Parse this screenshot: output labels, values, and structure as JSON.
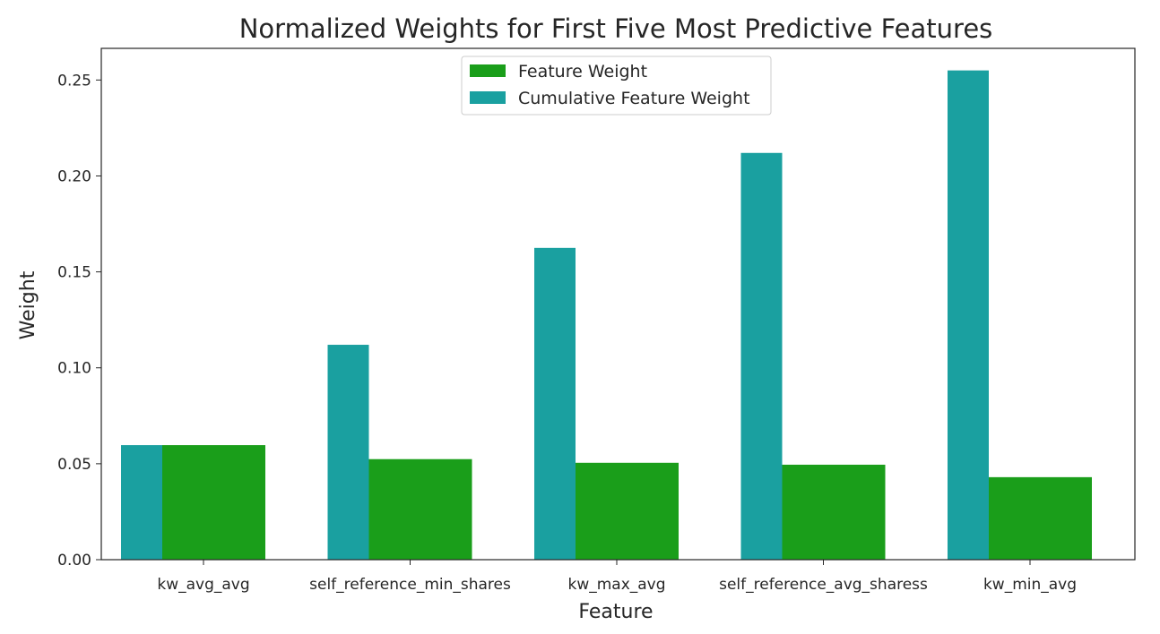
{
  "chart_data": {
    "type": "bar",
    "title": "Normalized Weights for First Five Most Predictive Features",
    "xlabel": "Feature",
    "ylabel": "Weight",
    "categories": [
      "kw_avg_avg",
      "self_reference_min_shares",
      "kw_max_avg",
      "self_reference_avg_sharess",
      "kw_min_avg"
    ],
    "series": [
      {
        "name": "Feature Weight",
        "color": "#1a9e1a",
        "values": [
          0.0597,
          0.0524,
          0.0505,
          0.0495,
          0.043
        ]
      },
      {
        "name": "Cumulative Feature Weight",
        "color": "#1aa0a0",
        "values": [
          0.0597,
          0.112,
          0.1625,
          0.212,
          0.255
        ]
      }
    ],
    "ylim": [
      0,
      0.2665
    ],
    "yticks": [
      0.0,
      0.05,
      0.1,
      0.15,
      0.2,
      0.25
    ],
    "ytick_labels": [
      "0.00",
      "0.05",
      "0.10",
      "0.15",
      "0.20",
      "0.25"
    ],
    "legend_position": "top-center",
    "grid": false
  }
}
